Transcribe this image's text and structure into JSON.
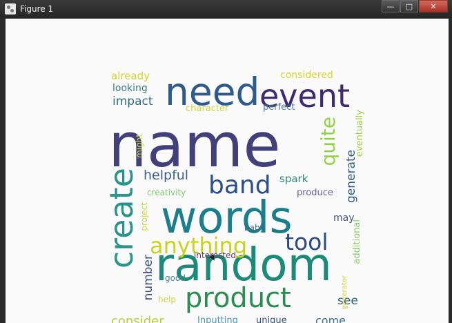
{
  "window": {
    "title": "Figure 1",
    "controls": {
      "minimize": "—",
      "maximize": "□",
      "close": "✕"
    }
  },
  "wordcloud": {
    "words": {
      "name": "name",
      "need": "need",
      "event": "event",
      "words": "words",
      "random": "random",
      "product": "product",
      "create": "create",
      "anything": "anything",
      "band": "band",
      "quite": "quite",
      "tool": "tool",
      "helpful": "helpful",
      "impact": "impact",
      "looking": "looking",
      "already": "already",
      "considered": "considered",
      "perfect": "perfect",
      "character": "character",
      "might": "might",
      "eventually": "eventually",
      "generate": "generate",
      "spark": "spark",
      "produce": "produce",
      "creativity": "creativity",
      "may": "may",
      "baby": "baby",
      "project": "project",
      "interested": "interested",
      "number": "number",
      "good": "good",
      "help": "help",
      "consider": "consider",
      "see": "see",
      "come": "come",
      "additional": "additional",
      "generator": "generator",
      "inputting": "Inputting",
      "unique": "unique"
    }
  }
}
